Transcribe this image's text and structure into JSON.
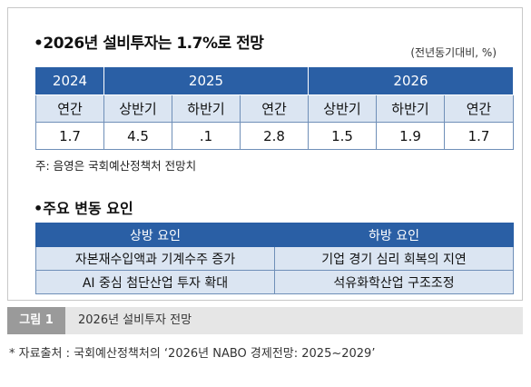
{
  "title": "•2026년 설비투자는 1.7%로 전망",
  "unit": "(전년동기대비, %)",
  "table1": {
    "years": [
      "2024",
      "2025",
      "2026"
    ],
    "halves": [
      "연간",
      "상반기",
      "하반기",
      "연간",
      "상반기",
      "하반기",
      "연간"
    ],
    "values": [
      "1.7",
      "4.5",
      ".1",
      "2.8",
      "1.5",
      "1.9",
      "1.7"
    ]
  },
  "note": "주: 음영은 국회예산정책처 전망치",
  "subtitle": "•주요 변동 요인",
  "table2": {
    "headers": [
      "상방 요인",
      "하방 요인"
    ],
    "rows": [
      [
        "자본재수입액과 기계수주 증가",
        "기업 경기 심리 회복의 지연"
      ],
      [
        "AI 중심 첨단산업  투자 확대",
        "석유화학산업 구조조정"
      ]
    ]
  },
  "figure": {
    "label": "그림 1",
    "caption": "2026년 설비투자 전망"
  },
  "source": "* 자료출처 : 국회예산정책처의 ‘2026년 NABO 경제전망: 2025~2029’"
}
